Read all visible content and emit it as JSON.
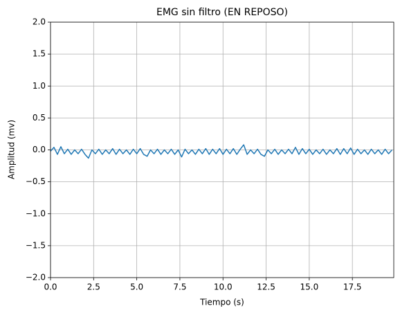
{
  "chart_data": {
    "type": "line",
    "title": "EMG sin filtro (EN REPOSO)",
    "xlabel": "Tiempo (s)",
    "ylabel": "Amplitud (mv)",
    "x": [
      0,
      0.2,
      0.4,
      0.6,
      0.8,
      1,
      1.2,
      1.4,
      1.6,
      1.8,
      2,
      2.2,
      2.4,
      2.6,
      2.8,
      3,
      3.2,
      3.4,
      3.6,
      3.8,
      4,
      4.2,
      4.4,
      4.6,
      4.8,
      5,
      5.2,
      5.4,
      5.6,
      5.8,
      6,
      6.2,
      6.4,
      6.6,
      6.8,
      7,
      7.2,
      7.4,
      7.6,
      7.8,
      8,
      8.2,
      8.4,
      8.6,
      8.8,
      9,
      9.2,
      9.4,
      9.6,
      9.8,
      10,
      10.2,
      10.4,
      10.6,
      10.8,
      11,
      11.2,
      11.4,
      11.6,
      11.8,
      12,
      12.2,
      12.4,
      12.6,
      12.8,
      13,
      13.2,
      13.4,
      13.6,
      13.8,
      14,
      14.2,
      14.4,
      14.6,
      14.8,
      15,
      15.2,
      15.4,
      15.6,
      15.8,
      16,
      16.2,
      16.4,
      16.6,
      16.8,
      17,
      17.2,
      17.4,
      17.6,
      17.8,
      18,
      18.2,
      18.4,
      18.6,
      18.8,
      19,
      19.2,
      19.4,
      19.6,
      19.8
    ],
    "series": [
      {
        "name": "EMG",
        "color": "#1f77b4",
        "values": [
          -0.02,
          0.04,
          -0.07,
          0.05,
          -0.06,
          0.01,
          -0.07,
          0,
          -0.06,
          0.01,
          -0.07,
          -0.13,
          0,
          -0.06,
          0.01,
          -0.07,
          0,
          -0.06,
          0.02,
          -0.07,
          0.01,
          -0.06,
          0,
          -0.07,
          0.01,
          -0.06,
          0.02,
          -0.07,
          -0.1,
          0,
          -0.06,
          0.01,
          -0.07,
          0,
          -0.06,
          0.01,
          -0.07,
          0,
          -0.11,
          0.01,
          -0.06,
          0,
          -0.07,
          0.01,
          -0.06,
          0.02,
          -0.07,
          0.01,
          -0.06,
          0.02,
          -0.07,
          0.01,
          -0.06,
          0.02,
          -0.07,
          0.01,
          0.08,
          -0.07,
          0,
          -0.06,
          0.01,
          -0.07,
          -0.1,
          0,
          -0.06,
          0.01,
          -0.07,
          0,
          -0.06,
          0.01,
          -0.06,
          0.04,
          -0.07,
          0.02,
          -0.06,
          0.01,
          -0.07,
          0,
          -0.06,
          0.01,
          -0.07,
          0,
          -0.06,
          0.02,
          -0.07,
          0.02,
          -0.06,
          0.03,
          -0.07,
          0.01,
          -0.06,
          0,
          -0.07,
          0.01,
          -0.06,
          0,
          -0.07,
          0.01,
          -0.06,
          0
        ]
      }
    ],
    "xlim": [
      0,
      19.9
    ],
    "ylim": [
      -2,
      2
    ],
    "xticks": [
      {
        "value": 0,
        "label": "0.0"
      },
      2.5,
      {
        "value": 5,
        "label": "5.0"
      },
      7.5,
      {
        "value": 10,
        "label": "10.0"
      },
      12.5,
      {
        "value": 15,
        "label": "15.0"
      },
      17.5
    ],
    "yticks": [
      {
        "value": -2,
        "label": "−2.0"
      },
      {
        "value": -1.5,
        "label": "−1.5"
      },
      {
        "value": -1,
        "label": "−1.0"
      },
      {
        "value": -0.5,
        "label": "−0.5"
      },
      {
        "value": 0,
        "label": "0.0"
      },
      0.5,
      {
        "value": 1,
        "label": "1.0"
      },
      1.5,
      {
        "value": 2,
        "label": "2.0"
      }
    ],
    "grid": true
  }
}
